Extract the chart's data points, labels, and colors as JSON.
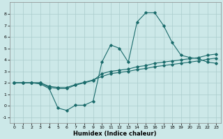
{
  "xlabel": "Humidex (Indice chaleur)",
  "xlim": [
    -0.5,
    23.5
  ],
  "ylim": [
    -1.5,
    9.0
  ],
  "yticks": [
    -1,
    0,
    1,
    2,
    3,
    4,
    5,
    6,
    7,
    8
  ],
  "xticks": [
    0,
    1,
    2,
    3,
    4,
    5,
    6,
    7,
    8,
    9,
    10,
    11,
    12,
    13,
    14,
    15,
    16,
    17,
    18,
    19,
    20,
    21,
    22,
    23
  ],
  "bg_color": "#cce8e8",
  "grid_color": "#aacccc",
  "line_color": "#1a6b6b",
  "line1_x": [
    0,
    1,
    2,
    3,
    4,
    5,
    6,
    7,
    8,
    9,
    10,
    11,
    12,
    13,
    14,
    15,
    16,
    17,
    18,
    19,
    20,
    21,
    22,
    23
  ],
  "line1_y": [
    2.0,
    2.0,
    2.0,
    1.9,
    1.5,
    -0.2,
    -0.4,
    0.05,
    0.05,
    0.4,
    3.8,
    5.3,
    5.0,
    3.8,
    7.3,
    8.1,
    8.1,
    7.0,
    5.5,
    4.4,
    4.2,
    4.1,
    3.8,
    3.7
  ],
  "line2_x": [
    0,
    1,
    2,
    3,
    4,
    5,
    6,
    7,
    8,
    9,
    10,
    11,
    12,
    13,
    14,
    15,
    16,
    17,
    18,
    19,
    20,
    21,
    22,
    23
  ],
  "line2_y": [
    2.0,
    2.0,
    2.0,
    2.0,
    1.6,
    1.5,
    1.5,
    1.8,
    2.0,
    2.2,
    2.8,
    3.0,
    3.1,
    3.2,
    3.4,
    3.5,
    3.7,
    3.8,
    3.9,
    4.0,
    4.1,
    4.2,
    4.4,
    4.5
  ],
  "line3_x": [
    0,
    1,
    2,
    3,
    4,
    5,
    6,
    7,
    8,
    9,
    10,
    11,
    12,
    13,
    14,
    15,
    16,
    17,
    18,
    19,
    20,
    21,
    22,
    23
  ],
  "line3_y": [
    2.0,
    2.0,
    2.0,
    2.0,
    1.7,
    1.6,
    1.6,
    1.85,
    2.05,
    2.25,
    2.55,
    2.8,
    2.9,
    3.0,
    3.15,
    3.25,
    3.4,
    3.5,
    3.6,
    3.7,
    3.8,
    3.9,
    4.05,
    4.15
  ]
}
